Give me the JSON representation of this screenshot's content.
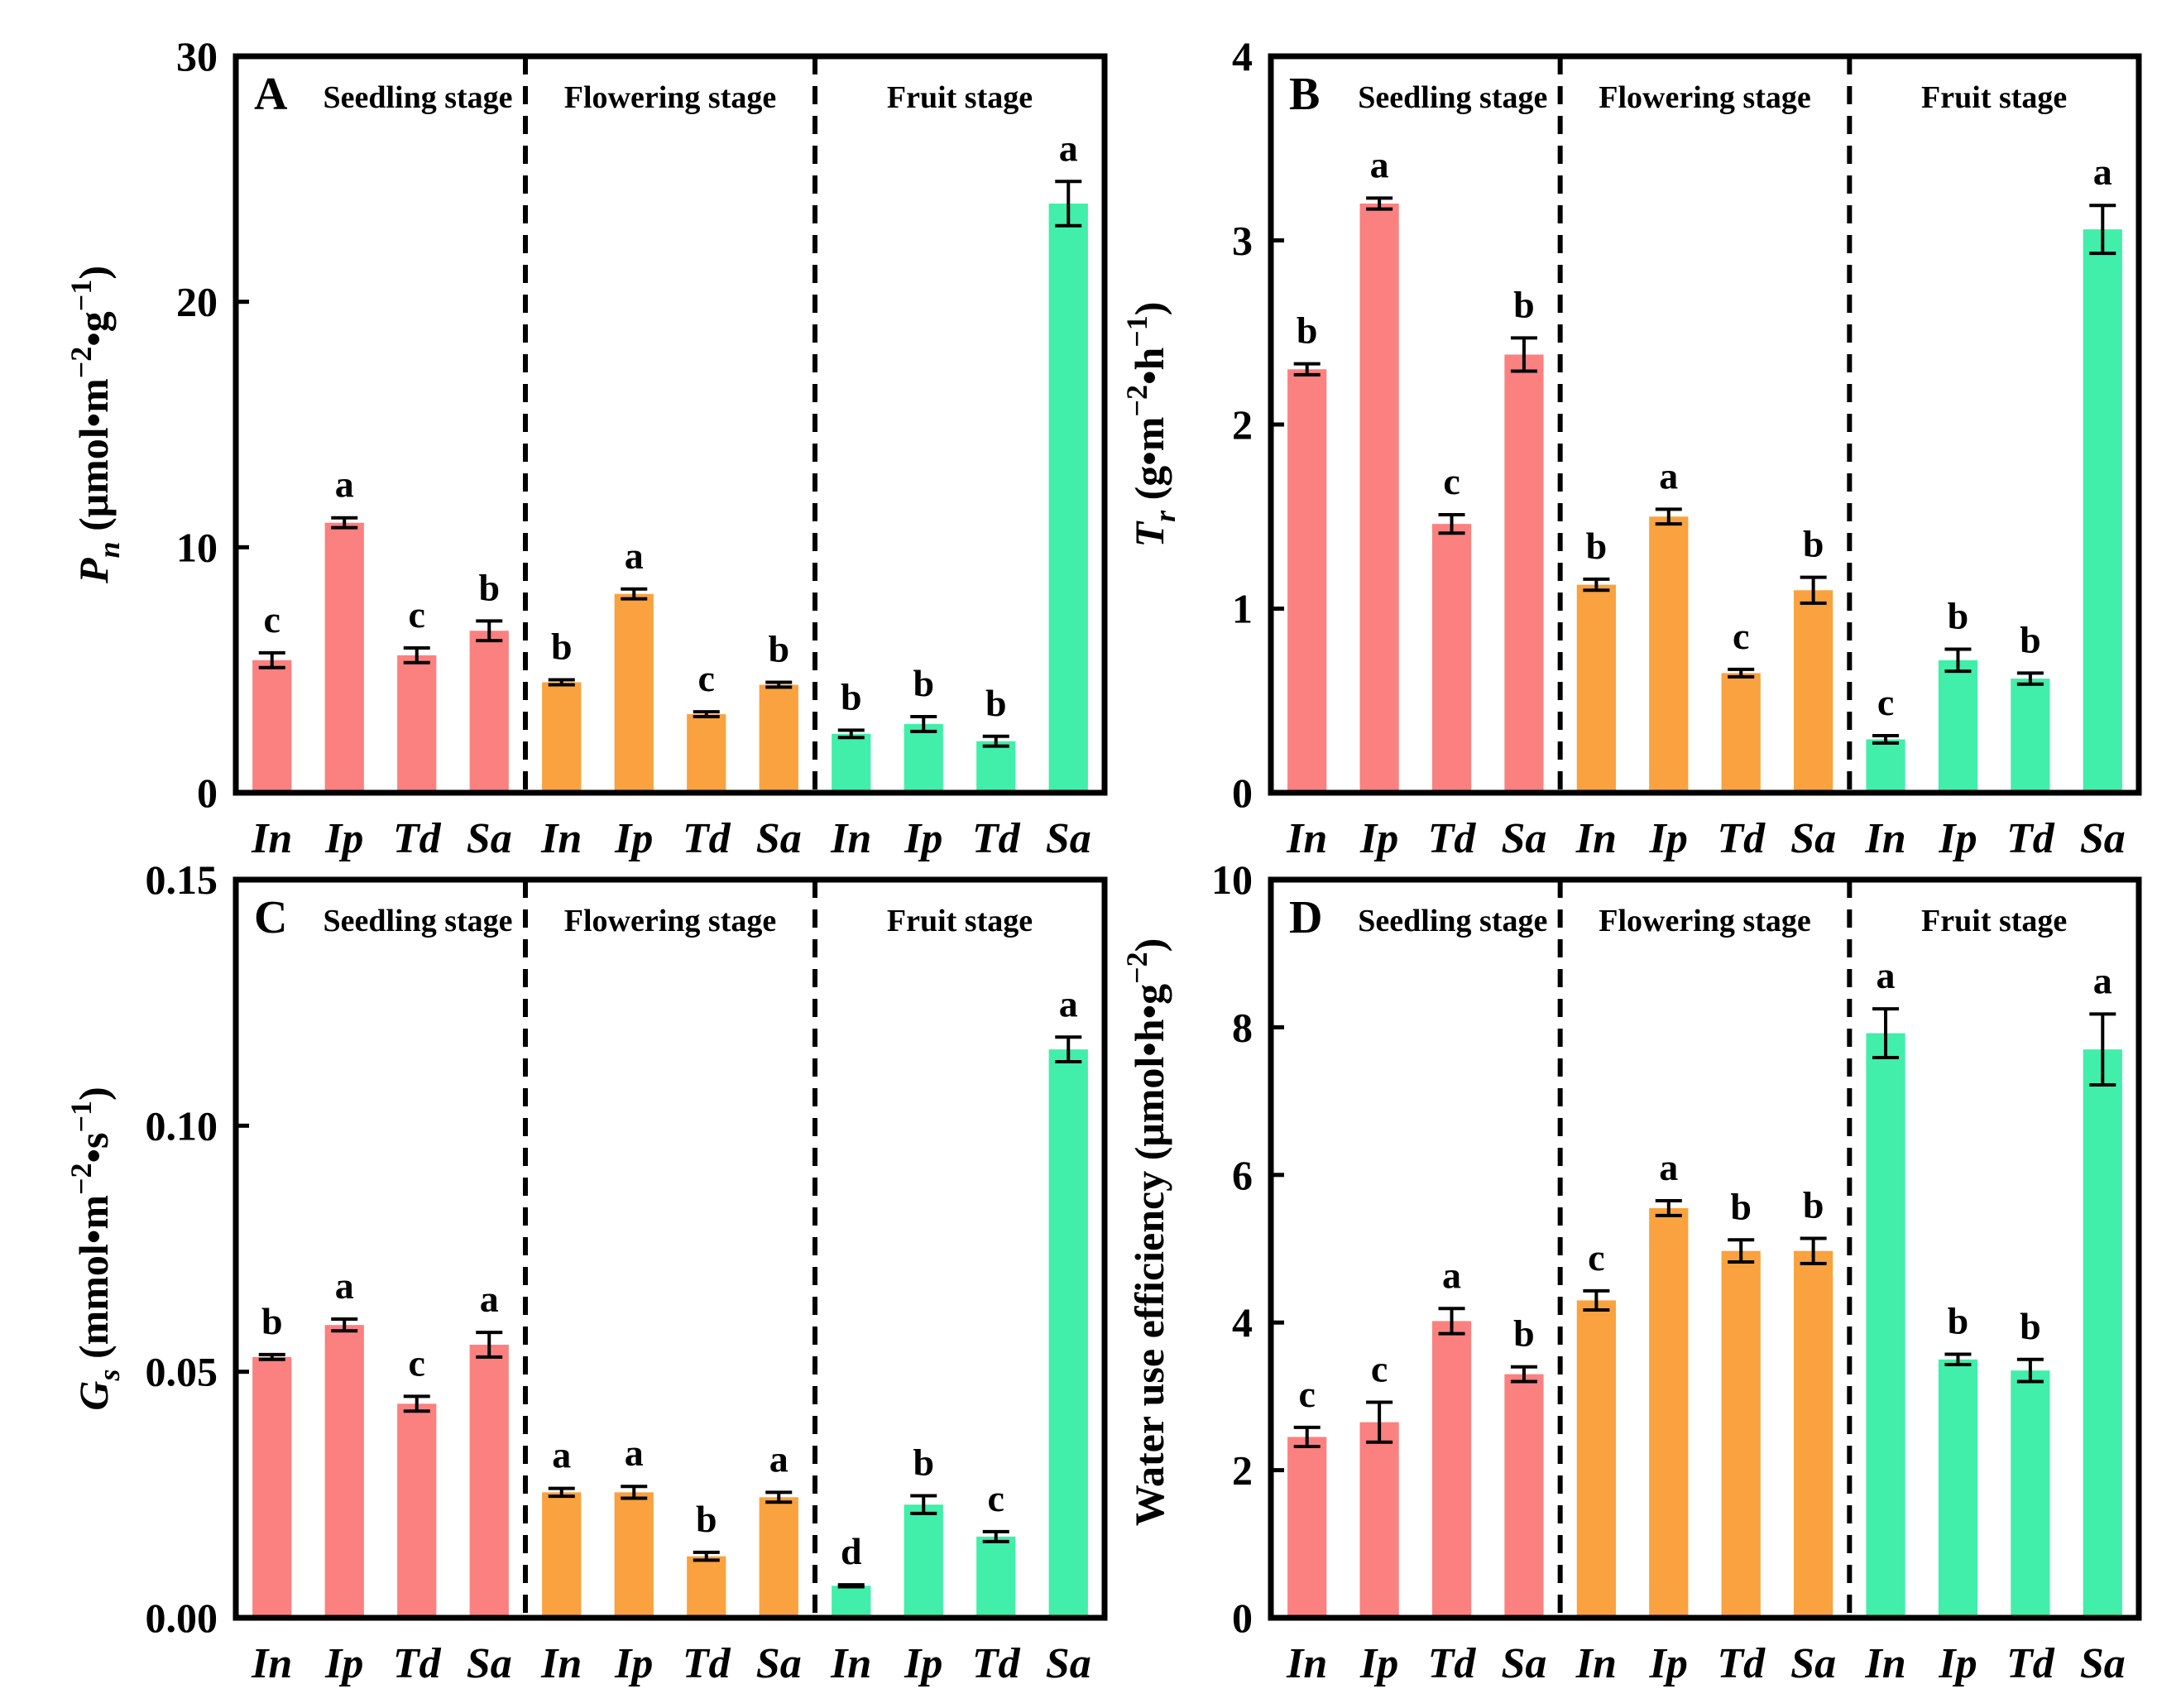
{
  "figure": {
    "categories": [
      "In",
      "Ip",
      "Td",
      "Sa"
    ],
    "stages": [
      "Seedling stage",
      "Flowering stage",
      "Fruit stage"
    ],
    "colors": {
      "seedling": "#fb8080",
      "flowering": "#f9a23f",
      "fruit": "#41eeaa",
      "axis": "#000000"
    }
  },
  "chart_data": [
    {
      "type": "bar",
      "panel": "A",
      "ylabel_parts": [
        "P",
        "n",
        " (μmol•m",
        "−2",
        "•g",
        "−1",
        ")"
      ],
      "ylim": [
        0,
        30
      ],
      "yticks": [
        "0",
        "10",
        "20",
        "30"
      ],
      "stages": [
        {
          "name": "Seedling stage",
          "categories": [
            "In",
            "Ip",
            "Td",
            "Sa"
          ],
          "values": [
            5.4,
            11.0,
            5.6,
            6.6
          ],
          "errors": [
            0.3,
            0.2,
            0.3,
            0.4
          ],
          "letters": [
            "c",
            "a",
            "c",
            "b"
          ]
        },
        {
          "name": "Flowering stage",
          "categories": [
            "In",
            "Ip",
            "Td",
            "Sa"
          ],
          "values": [
            4.5,
            8.1,
            3.2,
            4.4
          ],
          "errors": [
            0.1,
            0.2,
            0.1,
            0.1
          ],
          "letters": [
            "b",
            "a",
            "c",
            "b"
          ]
        },
        {
          "name": "Fruit stage",
          "categories": [
            "In",
            "Ip",
            "Td",
            "Sa"
          ],
          "values": [
            2.4,
            2.8,
            2.1,
            24.0
          ],
          "errors": [
            0.15,
            0.3,
            0.2,
            0.9
          ],
          "letters": [
            "b",
            "b",
            "b",
            "a"
          ]
        }
      ]
    },
    {
      "type": "bar",
      "panel": "B",
      "ylabel_parts": [
        "T",
        "r",
        " (g•m",
        "−2",
        "•h",
        "−1",
        ")"
      ],
      "ylim": [
        0,
        4
      ],
      "yticks": [
        "0",
        "1",
        "2",
        "3",
        "4"
      ],
      "stages": [
        {
          "name": "Seedling stage",
          "categories": [
            "In",
            "Ip",
            "Td",
            "Sa"
          ],
          "values": [
            2.3,
            3.2,
            1.46,
            2.38
          ],
          "errors": [
            0.03,
            0.03,
            0.05,
            0.09
          ],
          "letters": [
            "b",
            "a",
            "c",
            "b"
          ]
        },
        {
          "name": "Flowering stage",
          "categories": [
            "In",
            "Ip",
            "Td",
            "Sa"
          ],
          "values": [
            1.13,
            1.5,
            0.65,
            1.1
          ],
          "errors": [
            0.03,
            0.04,
            0.02,
            0.07
          ],
          "letters": [
            "b",
            "a",
            "c",
            "b"
          ]
        },
        {
          "name": "Fruit stage",
          "categories": [
            "In",
            "Ip",
            "Td",
            "Sa"
          ],
          "values": [
            0.29,
            0.72,
            0.62,
            3.06
          ],
          "errors": [
            0.02,
            0.06,
            0.03,
            0.13
          ],
          "letters": [
            "c",
            "b",
            "b",
            "a"
          ]
        }
      ]
    },
    {
      "type": "bar",
      "panel": "C",
      "ylabel_parts": [
        "G",
        "s",
        " (mmol•m",
        "−2",
        "•s",
        "−1",
        ")"
      ],
      "ylim": [
        0,
        0.15
      ],
      "yticks": [
        "0.00",
        "0.05",
        "0.10",
        "0.15"
      ],
      "stages": [
        {
          "name": "Seedling stage",
          "categories": [
            "In",
            "Ip",
            "Td",
            "Sa"
          ],
          "values": [
            0.053,
            0.0595,
            0.0435,
            0.0555
          ],
          "errors": [
            0.0005,
            0.0012,
            0.0015,
            0.0025
          ],
          "letters": [
            "b",
            "a",
            "c",
            "a"
          ]
        },
        {
          "name": "Flowering stage",
          "categories": [
            "In",
            "Ip",
            "Td",
            "Sa"
          ],
          "values": [
            0.0255,
            0.0255,
            0.0125,
            0.0245
          ],
          "errors": [
            0.0008,
            0.0012,
            0.0008,
            0.001
          ],
          "letters": [
            "a",
            "a",
            "b",
            "a"
          ]
        },
        {
          "name": "Fruit stage",
          "categories": [
            "In",
            "Ip",
            "Td",
            "Sa"
          ],
          "values": [
            0.0065,
            0.023,
            0.0165,
            0.1155
          ],
          "errors": [
            0.0002,
            0.0018,
            0.001,
            0.0025
          ],
          "letters": [
            "d",
            "b",
            "c",
            "a"
          ]
        }
      ]
    },
    {
      "type": "bar",
      "panel": "D",
      "ylabel_parts": [
        "Water use efficiency (μmol•h•g",
        "−2",
        ")"
      ],
      "ylim": [
        0,
        10
      ],
      "yticks": [
        "0",
        "2",
        "4",
        "6",
        "8",
        "10"
      ],
      "stages": [
        {
          "name": "Seedling stage",
          "categories": [
            "In",
            "Ip",
            "Td",
            "Sa"
          ],
          "values": [
            2.45,
            2.65,
            4.02,
            3.3
          ],
          "errors": [
            0.13,
            0.27,
            0.17,
            0.1
          ],
          "letters": [
            "c",
            "c",
            "a",
            "b"
          ]
        },
        {
          "name": "Flowering stage",
          "categories": [
            "In",
            "Ip",
            "Td",
            "Sa"
          ],
          "values": [
            4.3,
            5.55,
            4.97,
            4.97
          ],
          "errors": [
            0.13,
            0.1,
            0.15,
            0.17
          ],
          "letters": [
            "c",
            "a",
            "b",
            "b"
          ]
        },
        {
          "name": "Fruit stage",
          "categories": [
            "In",
            "Ip",
            "Td",
            "Sa"
          ],
          "values": [
            7.92,
            3.5,
            3.35,
            7.7
          ],
          "errors": [
            0.33,
            0.07,
            0.15,
            0.48
          ],
          "letters": [
            "a",
            "b",
            "b",
            "a"
          ]
        }
      ]
    }
  ]
}
